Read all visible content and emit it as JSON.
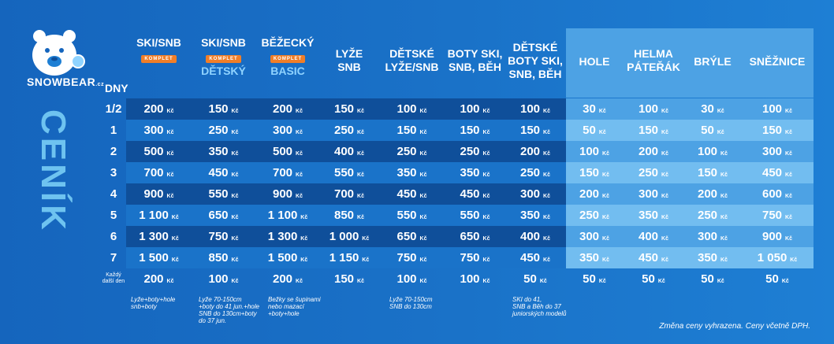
{
  "brand": {
    "name": "SNOWBEAR",
    "tld": ".cz"
  },
  "title": "CENÍK",
  "dny_label": "DNY",
  "headers": [
    {
      "line1": "SKI/SNB",
      "badge": "KOMPLET",
      "sub": ""
    },
    {
      "line1": "SKI/SNB",
      "badge": "KOMPLET",
      "sub": "DĚTSKÝ"
    },
    {
      "line1": "BĚŽECKÝ",
      "badge": "KOMPLET",
      "sub": "BASIC"
    },
    {
      "line1": "LYŽE",
      "line2": "SNB"
    },
    {
      "line1": "DĚTSKÉ",
      "line2": "LYŽE/SNB"
    },
    {
      "line1": "BOTY SKI,",
      "line2": "SNB, BĚH"
    },
    {
      "line1": "DĚTSKÉ",
      "line2": "BOTY SKI,",
      "line3": "SNB, BĚH"
    },
    {
      "line1": "HOLE"
    },
    {
      "line1": "HELMA",
      "line2": "PÁTEŘÁK"
    },
    {
      "line1": "BRÝLE"
    },
    {
      "line1": "SNĚŽNICE"
    }
  ],
  "currency": "Kč",
  "rows": [
    {
      "label": "1/2",
      "values": [
        "200",
        "150",
        "200",
        "150",
        "100",
        "100",
        "100",
        "30",
        "100",
        "30",
        "100"
      ]
    },
    {
      "label": "1",
      "values": [
        "300",
        "250",
        "300",
        "250",
        "150",
        "150",
        "150",
        "50",
        "150",
        "50",
        "150"
      ]
    },
    {
      "label": "2",
      "values": [
        "500",
        "350",
        "500",
        "400",
        "250",
        "250",
        "200",
        "100",
        "200",
        "100",
        "300"
      ]
    },
    {
      "label": "3",
      "values": [
        "700",
        "450",
        "700",
        "550",
        "350",
        "350",
        "250",
        "150",
        "250",
        "150",
        "450"
      ]
    },
    {
      "label": "4",
      "values": [
        "900",
        "550",
        "900",
        "700",
        "450",
        "450",
        "300",
        "200",
        "300",
        "200",
        "600"
      ]
    },
    {
      "label": "5",
      "values": [
        "1 100",
        "650",
        "1 100",
        "850",
        "550",
        "550",
        "350",
        "250",
        "350",
        "250",
        "750"
      ]
    },
    {
      "label": "6",
      "values": [
        "1 300",
        "750",
        "1 300",
        "1 000",
        "650",
        "650",
        "400",
        "300",
        "400",
        "300",
        "900"
      ]
    },
    {
      "label": "7",
      "values": [
        "1 500",
        "850",
        "1 500",
        "1 150",
        "750",
        "750",
        "450",
        "350",
        "450",
        "350",
        "1 050"
      ]
    },
    {
      "label_line1": "Každý",
      "label_line2": "další den",
      "values": [
        "200",
        "100",
        "200",
        "150",
        "100",
        "100",
        "50",
        "50",
        "50",
        "50",
        "50"
      ]
    }
  ],
  "notes": [
    {
      "lines": [
        "Lyže+boty+hole",
        "snb+boty"
      ]
    },
    {
      "lines": [
        "Lyže 70-150cm",
        "+boty do 41 jun.+hole",
        "SNB do 130cm+boty",
        "do 37 jun."
      ]
    },
    {
      "lines": [
        "Bežky se šupinami",
        "nebo mazací",
        "+boty+hole"
      ]
    },
    {
      "lines": [
        "Lyže 70-150cm",
        "SNB do 130cm"
      ]
    },
    {
      "lines": [
        "SKI do 41,",
        "SNB a Běh do 37",
        "juniorských modelů"
      ]
    }
  ],
  "footer": "Změna ceny vyhrazena. Ceny včetně DPH.",
  "colors": {
    "bg": "#1a6fc6",
    "dark": "#0f4f9a",
    "mid": "#1a73c9",
    "light": "#4da2e4",
    "lighter": "#72bdf0",
    "accent": "#f07e28",
    "title": "#6ec3f0"
  }
}
